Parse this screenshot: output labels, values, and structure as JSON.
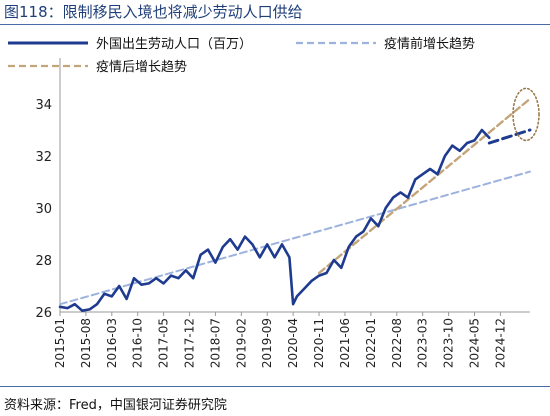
{
  "figure": {
    "title": "图118：限制移民入境也将减少劳动人口供给",
    "source": "资料来源：Fred，中国银河证券研究院"
  },
  "chart_data": {
    "type": "line",
    "title": "图118：限制移民入境也将减少劳动人口供给",
    "ylim": [
      26,
      35
    ],
    "yticks": [
      26,
      28,
      30,
      32,
      34
    ],
    "x_tick_labels": [
      "2015-01",
      "2015-08",
      "2016-03",
      "2016-10",
      "2017-05",
      "2017-12",
      "2018-07",
      "2019-02",
      "2019-09",
      "2020-04",
      "2020-11",
      "2021-06",
      "2022-01",
      "2022-08",
      "2023-03",
      "2023-10",
      "2024-05",
      "2024-12"
    ],
    "x_range": [
      "2015-01",
      "2025-08"
    ],
    "legend_placement": "top-left",
    "colors": {
      "actual": "#1f3b8f",
      "pre_trend": "#9db3de",
      "post_trend": "#c4a57a",
      "forecast": "#1f3b8f",
      "circle": "#9a7a4e"
    },
    "series": [
      {
        "name": "外国出生劳动人口（百万）",
        "style": "solid",
        "points": [
          [
            "2015-01",
            26.2
          ],
          [
            "2015-03",
            26.15
          ],
          [
            "2015-05",
            26.3
          ],
          [
            "2015-07",
            26.05
          ],
          [
            "2015-09",
            26.1
          ],
          [
            "2015-11",
            26.3
          ],
          [
            "2016-01",
            26.7
          ],
          [
            "2016-03",
            26.6
          ],
          [
            "2016-05",
            27.0
          ],
          [
            "2016-07",
            26.5
          ],
          [
            "2016-09",
            27.3
          ],
          [
            "2016-11",
            27.05
          ],
          [
            "2017-01",
            27.1
          ],
          [
            "2017-03",
            27.3
          ],
          [
            "2017-05",
            27.1
          ],
          [
            "2017-07",
            27.4
          ],
          [
            "2017-09",
            27.3
          ],
          [
            "2017-11",
            27.6
          ],
          [
            "2018-01",
            27.3
          ],
          [
            "2018-03",
            28.2
          ],
          [
            "2018-05",
            28.4
          ],
          [
            "2018-07",
            27.9
          ],
          [
            "2018-09",
            28.5
          ],
          [
            "2018-11",
            28.8
          ],
          [
            "2019-01",
            28.4
          ],
          [
            "2019-03",
            28.9
          ],
          [
            "2019-05",
            28.6
          ],
          [
            "2019-07",
            28.1
          ],
          [
            "2019-09",
            28.6
          ],
          [
            "2019-11",
            28.1
          ],
          [
            "2020-01",
            28.6
          ],
          [
            "2020-03",
            28.1
          ],
          [
            "2020-04",
            26.3
          ],
          [
            "2020-05",
            26.6
          ],
          [
            "2020-07",
            26.9
          ],
          [
            "2020-09",
            27.2
          ],
          [
            "2020-11",
            27.4
          ],
          [
            "2021-01",
            27.5
          ],
          [
            "2021-03",
            28.0
          ],
          [
            "2021-05",
            27.7
          ],
          [
            "2021-07",
            28.5
          ],
          [
            "2021-09",
            28.9
          ],
          [
            "2021-11",
            29.1
          ],
          [
            "2022-01",
            29.6
          ],
          [
            "2022-03",
            29.3
          ],
          [
            "2022-05",
            30.0
          ],
          [
            "2022-07",
            30.4
          ],
          [
            "2022-09",
            30.6
          ],
          [
            "2022-11",
            30.4
          ],
          [
            "2023-01",
            31.1
          ],
          [
            "2023-03",
            31.3
          ],
          [
            "2023-05",
            31.5
          ],
          [
            "2023-07",
            31.3
          ],
          [
            "2023-09",
            32.0
          ],
          [
            "2023-11",
            32.4
          ],
          [
            "2024-01",
            32.2
          ],
          [
            "2024-03",
            32.5
          ],
          [
            "2024-05",
            32.6
          ],
          [
            "2024-07",
            33.0
          ],
          [
            "2024-09",
            32.7
          ]
        ]
      },
      {
        "name": "",
        "style": "dashed",
        "role": "forecast",
        "points": [
          [
            "2024-09",
            32.5
          ],
          [
            "2025-08",
            33.0
          ]
        ]
      },
      {
        "name": "疫情前增长趋势",
        "style": "dashed",
        "role": "trend",
        "points": [
          [
            "2015-01",
            26.3
          ],
          [
            "2025-08",
            31.4
          ]
        ]
      },
      {
        "name": "疫情后增长趋势",
        "style": "dashed",
        "role": "trend",
        "points": [
          [
            "2020-11",
            27.5
          ],
          [
            "2025-08",
            34.2
          ]
        ]
      }
    ]
  }
}
